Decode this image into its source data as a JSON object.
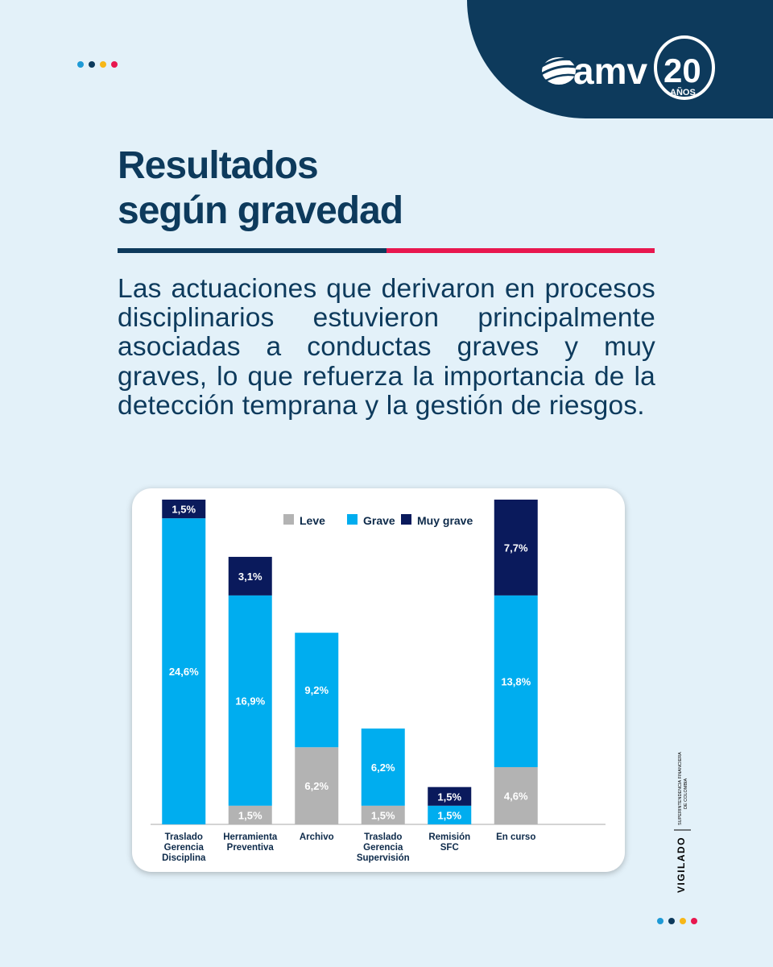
{
  "colors": {
    "background": "#e3f1f9",
    "navy": "#0d3a5c",
    "accent_red": "#e8174f",
    "leve": "#b3b3b3",
    "grave": "#00adef",
    "muy_grave": "#0a1a5c",
    "text": "#0d3a5c",
    "dots": [
      "#1e9ad6",
      "#0d3a5c",
      "#f7b718",
      "#e8174f"
    ]
  },
  "brand": {
    "logo_text": "amv",
    "logo_number": "20",
    "logo_sub": "AÑOS"
  },
  "title": {
    "line1": "Resultados",
    "line2": "según gravedad"
  },
  "paragraph": "Las actuaciones que derivaron en procesos disciplinarios estuvieron principalmente asociadas a conductas graves y muy graves, lo que refuerza la importancia de la detección temprana y la gestión de riesgos.",
  "chart_data": {
    "type": "bar",
    "stacked": true,
    "legend_position": "top",
    "categories": [
      [
        "Traslado",
        "Gerencia",
        "Disciplina"
      ],
      [
        "Herramienta",
        "Preventiva"
      ],
      [
        "Archivo"
      ],
      [
        "Traslado",
        "Gerencia",
        "Supervisión"
      ],
      [
        "Remisión",
        "SFC"
      ],
      [
        "En curso"
      ]
    ],
    "series": [
      {
        "name": "Leve",
        "color": "#b3b3b3",
        "values": [
          0,
          1.5,
          6.2,
          1.5,
          0,
          4.6
        ],
        "labels": [
          "",
          "1,5%",
          "6,2%",
          "1,5%",
          "",
          "4,6%"
        ]
      },
      {
        "name": "Grave",
        "color": "#00adef",
        "values": [
          24.6,
          16.9,
          9.2,
          6.2,
          1.5,
          13.8
        ],
        "labels": [
          "24,6%",
          "16,9%",
          "9,2%",
          "6,2%",
          "1,5%",
          "13,8%"
        ]
      },
      {
        "name": "Muy grave",
        "color": "#0a1a5c",
        "values": [
          1.5,
          3.1,
          0,
          0,
          1.5,
          7.7
        ],
        "labels": [
          "1,5%",
          "3,1%",
          "",
          "",
          "1,5%",
          "7,7%"
        ]
      }
    ],
    "ylim": [
      0,
      26.1
    ],
    "grid": false,
    "title": "",
    "xlabel": "",
    "ylabel": ""
  },
  "vigilado": {
    "label": "VIGILADO",
    "org_line1": "SUPERINTENDENCIA FINANCIERA",
    "org_line2": "DE COLOMBIA"
  }
}
